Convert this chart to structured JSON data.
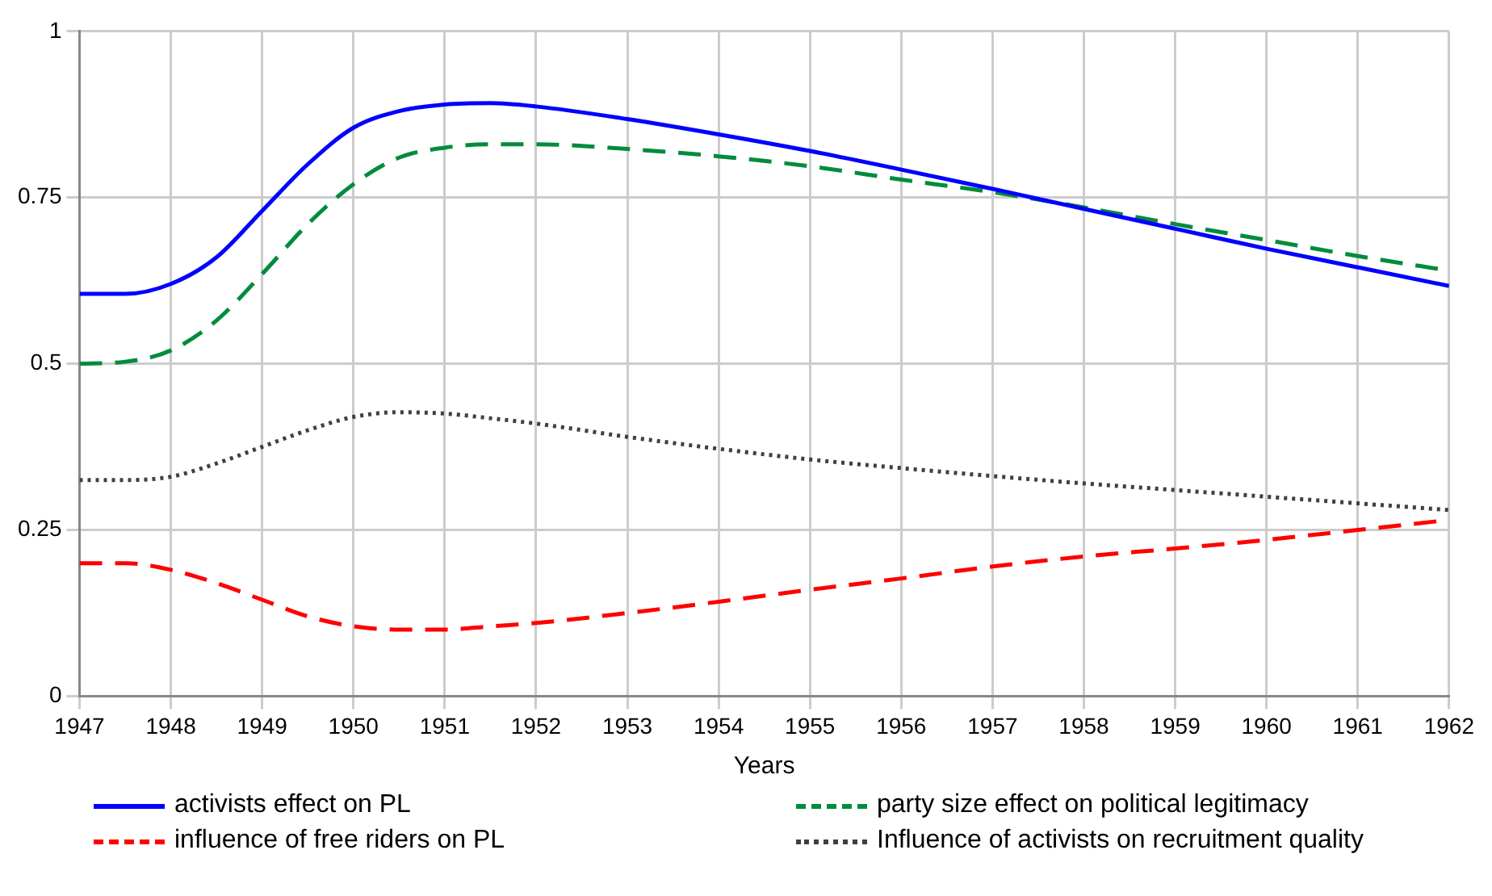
{
  "chart_data": {
    "type": "line",
    "xlabel": "Years",
    "x": [
      1947,
      1947.5,
      1948,
      1948.5,
      1949,
      1949.5,
      1950,
      1950.5,
      1951,
      1951.5,
      1952,
      1953,
      1954,
      1955,
      1956,
      1957,
      1958,
      1959,
      1960,
      1961,
      1962
    ],
    "xlim": [
      1947,
      1962
    ],
    "xticks": [
      1947,
      1948,
      1949,
      1950,
      1951,
      1952,
      1953,
      1954,
      1955,
      1956,
      1957,
      1958,
      1959,
      1960,
      1961,
      1962
    ],
    "ylim": [
      0,
      1
    ],
    "yticks": [
      0,
      0.25,
      0.5,
      0.75,
      1
    ],
    "grid": true,
    "legend": "bottom",
    "marker": "none",
    "series": [
      {
        "name": "activists effect on PL",
        "color": "#0000ff",
        "line_style": "solid",
        "values": [
          0.605,
          0.605,
          0.62,
          0.66,
          0.73,
          0.8,
          0.855,
          0.88,
          0.89,
          0.892,
          0.887,
          0.868,
          0.845,
          0.82,
          0.792,
          0.763,
          0.733,
          0.703,
          0.673,
          0.645,
          0.617
        ]
      },
      {
        "name": "party size effect on political legitimacy",
        "color": "#008c3c",
        "line_style": "dashed",
        "values": [
          0.5,
          0.503,
          0.52,
          0.565,
          0.635,
          0.71,
          0.77,
          0.81,
          0.825,
          0.83,
          0.83,
          0.823,
          0.812,
          0.797,
          0.777,
          0.758,
          0.735,
          0.71,
          0.686,
          0.662,
          0.64
        ]
      },
      {
        "name": "influence of free riders on PL",
        "color": "#ff0000",
        "line_style": "dashed",
        "values": [
          0.2,
          0.2,
          0.19,
          0.17,
          0.145,
          0.12,
          0.105,
          0.1,
          0.1,
          0.105,
          0.11,
          0.125,
          0.142,
          0.16,
          0.177,
          0.195,
          0.21,
          0.222,
          0.235,
          0.25,
          0.265
        ]
      },
      {
        "name": "Influence of activists on recruitment quality",
        "color": "#404040",
        "line_style": "dotted",
        "values": [
          0.325,
          0.325,
          0.33,
          0.35,
          0.375,
          0.4,
          0.42,
          0.427,
          0.425,
          0.418,
          0.41,
          0.39,
          0.372,
          0.356,
          0.343,
          0.331,
          0.32,
          0.31,
          0.3,
          0.29,
          0.28
        ]
      }
    ]
  }
}
